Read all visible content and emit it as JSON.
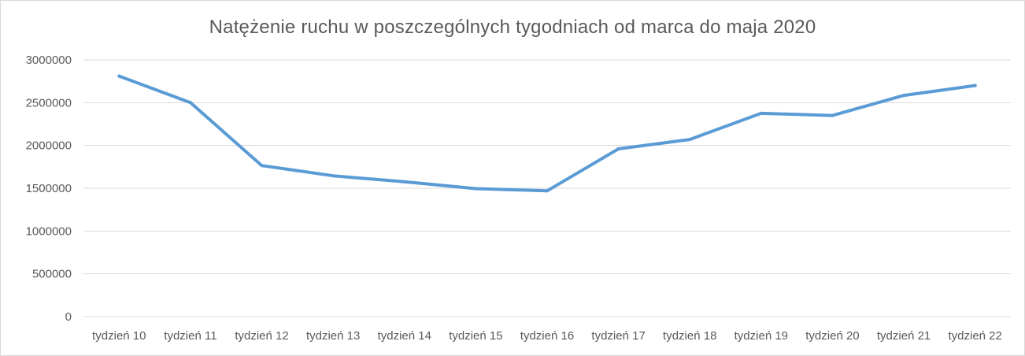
{
  "chart_data": {
    "type": "line",
    "title": "Natężenie ruchu w poszczególnych  tygodniach od marca do maja 2020",
    "xlabel": "",
    "ylabel": "",
    "categories": [
      "tydzień 10",
      "tydzień 11",
      "tydzień 12",
      "tydzień 13",
      "tydzień 14",
      "tydzień 15",
      "tydzień 16",
      "tydzień 17",
      "tydzień 18",
      "tydzień 19",
      "tydzień 20",
      "tydzień 21",
      "tydzień 22"
    ],
    "series": [
      {
        "values": [
          2810000,
          2500000,
          1765000,
          1645000,
          1575000,
          1495000,
          1470000,
          1960000,
          2070000,
          2375000,
          2350000,
          2585000,
          2700000
        ],
        "color": "#5b9bd5"
      }
    ],
    "yticks": [
      0,
      500000,
      1000000,
      1500000,
      2000000,
      2500000,
      3000000
    ],
    "ytick_labels": [
      "0",
      "500000",
      "1000000",
      "1500000",
      "2000000",
      "2500000",
      "3000000"
    ],
    "ylim": [
      0,
      3000000
    ],
    "grid": true,
    "legend": "none",
    "colors": {
      "line": "#5b9bd5",
      "grid": "#d9d9d9",
      "text": "#595959",
      "border": "#d9d9d9"
    }
  }
}
